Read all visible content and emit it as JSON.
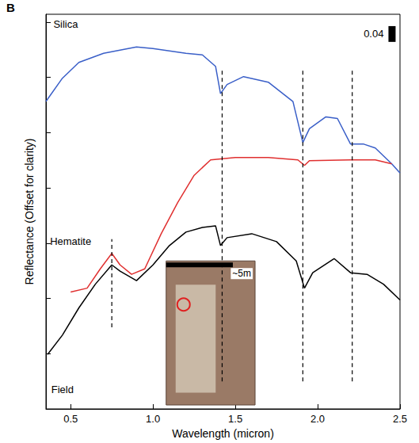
{
  "chart_data": {
    "type": "line",
    "panel": "B",
    "x_label": "Wavelength (micron)",
    "y_label": "Reflectance (Offset for clarity)",
    "xlim": [
      0.35,
      2.5
    ],
    "xticks": [
      0.5,
      {
        "value": 1.0,
        "label": "1.0"
      },
      1.5,
      {
        "value": 2.0,
        "label": "2.0"
      },
      2.5
    ],
    "ylim": [
      0,
      1.0
    ],
    "yticks": [
      0,
      0.14,
      0.28,
      0.42,
      0.56,
      0.7,
      0.84,
      0.98
    ],
    "tick_labels": "x",
    "grid": false,
    "scale_bar": {
      "label": "0.04",
      "size": 0.04
    },
    "inset_label": "~5m",
    "series": [
      {
        "name": "Silica",
        "color": "#3a5fc8",
        "label_x": 0.47,
        "label_y": 0.975,
        "x": [
          0.35,
          0.45,
          0.55,
          0.7,
          0.9,
          1.0,
          1.2,
          1.3,
          1.38,
          1.41,
          1.45,
          1.55,
          1.7,
          1.85,
          1.91,
          1.95,
          2.05,
          2.12,
          2.2,
          2.28,
          2.35,
          2.45,
          2.5
        ],
        "values": [
          0.779,
          0.838,
          0.878,
          0.901,
          0.917,
          0.913,
          0.901,
          0.897,
          0.868,
          0.799,
          0.822,
          0.842,
          0.828,
          0.779,
          0.675,
          0.71,
          0.74,
          0.736,
          0.671,
          0.671,
          0.661,
          0.621,
          0.598
        ]
      },
      {
        "name": "Hematite",
        "color": "#e03030",
        "label_x": 0.5,
        "label_y": 0.425,
        "x": [
          0.5,
          0.6,
          0.68,
          0.75,
          0.8,
          0.87,
          0.95,
          1.05,
          1.15,
          1.25,
          1.35,
          1.5,
          1.7,
          1.88,
          1.92,
          1.95,
          2.2,
          2.35,
          2.45
        ],
        "values": [
          0.296,
          0.306,
          0.355,
          0.394,
          0.365,
          0.341,
          0.355,
          0.444,
          0.523,
          0.592,
          0.631,
          0.637,
          0.637,
          0.631,
          0.617,
          0.629,
          0.631,
          0.631,
          0.621
        ]
      },
      {
        "name": "Field",
        "color": "#000000",
        "label_x": 0.45,
        "label_y": 0.05,
        "x": [
          0.36,
          0.45,
          0.55,
          0.65,
          0.75,
          0.8,
          0.9,
          1.0,
          1.1,
          1.2,
          1.3,
          1.38,
          1.41,
          1.45,
          1.6,
          1.75,
          1.87,
          1.92,
          1.97,
          2.1,
          2.2,
          2.3,
          2.4,
          2.5
        ],
        "values": [
          0.138,
          0.187,
          0.256,
          0.316,
          0.365,
          0.349,
          0.325,
          0.365,
          0.414,
          0.448,
          0.46,
          0.464,
          0.414,
          0.434,
          0.444,
          0.424,
          0.375,
          0.306,
          0.345,
          0.381,
          0.345,
          0.341,
          0.316,
          0.276
        ]
      }
    ],
    "vlines": [
      {
        "x": 0.75,
        "ymin": 0.207,
        "ymax": 0.43
      },
      {
        "x": 1.42,
        "ymin": 0.07,
        "ymax": 0.86
      },
      {
        "x": 1.91,
        "ymin": 0.07,
        "ymax": 0.86
      },
      {
        "x": 2.21,
        "ymin": 0.07,
        "ymax": 0.86
      }
    ]
  }
}
